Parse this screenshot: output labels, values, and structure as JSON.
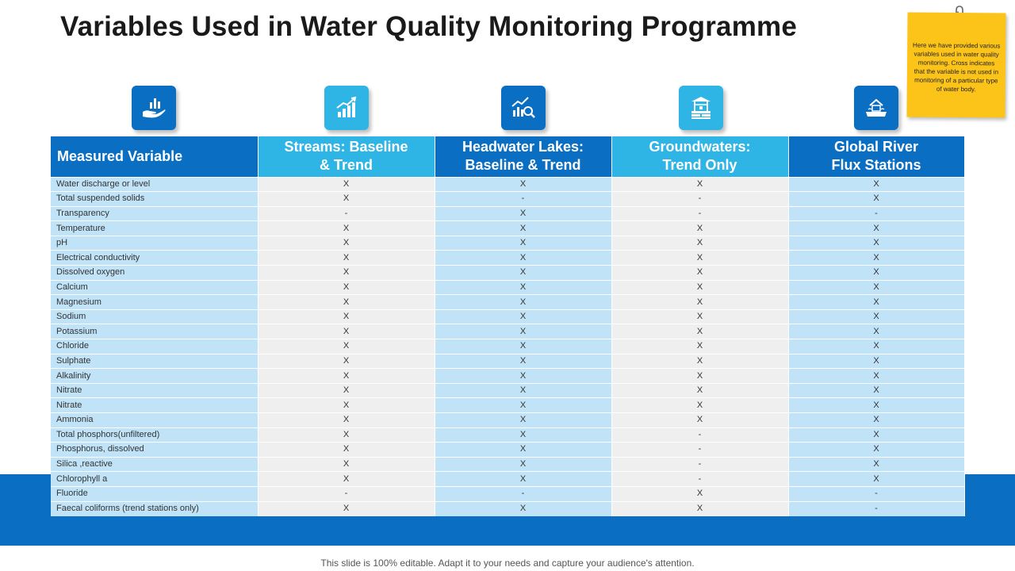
{
  "title": "Variables Used in Water Quality Monitoring Programme",
  "note": {
    "text": "Here we have provided various variables used in water quality monitoring. Cross indicates that the variable is not used in monitoring of a particular type of water body."
  },
  "icons": [
    {
      "name": "hand-chart-icon"
    },
    {
      "name": "growth-chart-icon"
    },
    {
      "name": "chart-magnifier-icon"
    },
    {
      "name": "water-well-icon"
    },
    {
      "name": "house-water-icon"
    }
  ],
  "table": {
    "headers": [
      "Measured Variable",
      "Streams: Baseline\n& Trend",
      "Headwater Lakes:\nBaseline & Trend",
      "Groundwaters:\nTrend Only",
      "Global River\nFlux Stations"
    ],
    "rows": [
      {
        "label": "Water discharge or level",
        "values": [
          "X",
          "X",
          "X",
          "X"
        ]
      },
      {
        "label": "Total suspended solids",
        "values": [
          "X",
          "-",
          "-",
          "X"
        ]
      },
      {
        "label": "Transparency",
        "values": [
          "-",
          "X",
          "-",
          "-"
        ]
      },
      {
        "label": "Temperature",
        "values": [
          "X",
          "X",
          "X",
          "X"
        ]
      },
      {
        "label": "pH",
        "values": [
          "X",
          "X",
          "X",
          "X"
        ]
      },
      {
        "label": "Electrical conductivity",
        "values": [
          "X",
          "X",
          "X",
          "X"
        ]
      },
      {
        "label": "Dissolved oxygen",
        "values": [
          "X",
          "X",
          "X",
          "X"
        ]
      },
      {
        "label": "Calcium",
        "values": [
          "X",
          "X",
          "X",
          "X"
        ]
      },
      {
        "label": "Magnesium",
        "values": [
          "X",
          "X",
          "X",
          "X"
        ]
      },
      {
        "label": "Sodium",
        "values": [
          "X",
          "X",
          "X",
          "X"
        ]
      },
      {
        "label": "Potassium",
        "values": [
          "X",
          "X",
          "X",
          "X"
        ]
      },
      {
        "label": "Chloride",
        "values": [
          "X",
          "X",
          "X",
          "X"
        ]
      },
      {
        "label": "Sulphate",
        "values": [
          "X",
          "X",
          "X",
          "X"
        ]
      },
      {
        "label": "Alkalinity",
        "values": [
          "X",
          "X",
          "X",
          "X"
        ]
      },
      {
        "label": "Nitrate",
        "values": [
          "X",
          "X",
          "X",
          "X"
        ]
      },
      {
        "label": "Nitrate",
        "values": [
          "X",
          "X",
          "X",
          "X"
        ]
      },
      {
        "label": "Ammonia",
        "values": [
          "X",
          "X",
          "X",
          "X"
        ]
      },
      {
        "label": "Total phosphors(unfiltered)",
        "values": [
          "X",
          "X",
          "-",
          "X"
        ]
      },
      {
        "label": "Phosphorus, dissolved",
        "values": [
          "X",
          "X",
          "-",
          "X"
        ]
      },
      {
        "label": "Silica ,reactive",
        "values": [
          "X",
          "X",
          "-",
          "X"
        ]
      },
      {
        "label": "Chlorophyll a",
        "values": [
          "X",
          "X",
          "-",
          "X"
        ]
      },
      {
        "label": "Fluoride",
        "values": [
          "-",
          "-",
          "X",
          "-"
        ]
      },
      {
        "label": "Faecal coliforms (trend stations only)",
        "values": [
          "X",
          "X",
          "X",
          "-"
        ]
      }
    ]
  },
  "footer": "This slide is 100% editable. Adapt it to your needs and capture your audience's attention.",
  "colors": {
    "dark_blue": "#0a6ec3",
    "light_blue": "#2fb4e6",
    "note_yellow": "#fcc419"
  }
}
